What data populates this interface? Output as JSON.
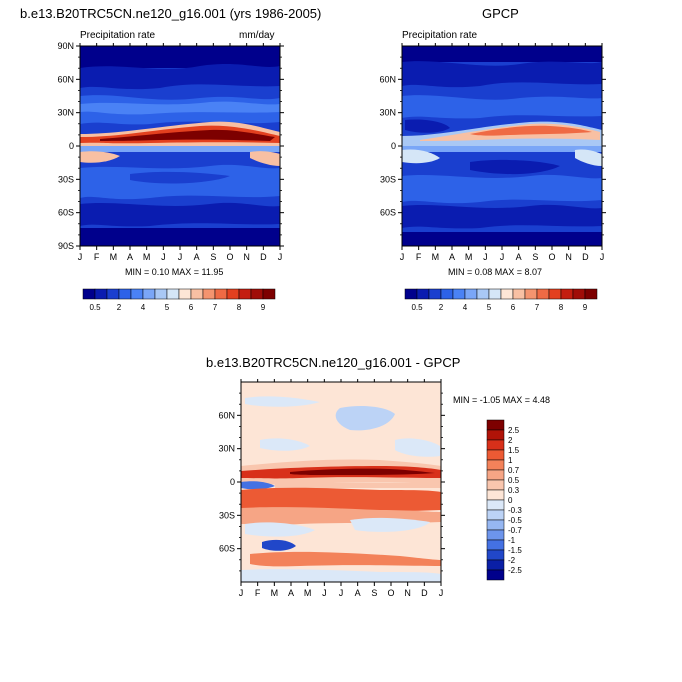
{
  "panels": [
    {
      "title": "b.e13.B20TRC5CN.ne120_g16.001 (yrs 1986-2005)",
      "left_label": "Precipitation rate",
      "right_label": "mm/day",
      "y_ticks": [
        "90N",
        "60N",
        "30N",
        "0",
        "30S",
        "60S",
        "90S"
      ],
      "x_ticks": [
        "J",
        "F",
        "M",
        "A",
        "M",
        "J",
        "J",
        "A",
        "S",
        "O",
        "N",
        "D",
        "J"
      ],
      "stats": "MIN =  0.10 MAX = 11.95",
      "colorbar_labels": [
        "0.5",
        "2",
        "4",
        "5",
        "6",
        "7",
        "8",
        "9"
      ]
    },
    {
      "title": "GPCP",
      "left_label": "Precipitation rate",
      "right_label": "",
      "y_ticks": [
        "60N",
        "30N",
        "0",
        "30S",
        "60S"
      ],
      "x_ticks": [
        "J",
        "F",
        "M",
        "A",
        "M",
        "J",
        "J",
        "A",
        "S",
        "O",
        "N",
        "D",
        "J"
      ],
      "stats": "MIN =  0.08 MAX =  8.07",
      "colorbar_labels": [
        "0.5",
        "2",
        "4",
        "5",
        "6",
        "7",
        "8",
        "9"
      ]
    },
    {
      "title": "b.e13.B20TRC5CN.ne120_g16.001 - GPCP",
      "y_ticks": [
        "60N",
        "30N",
        "0",
        "30S",
        "60S"
      ],
      "x_ticks": [
        "J",
        "F",
        "M",
        "A",
        "M",
        "J",
        "J",
        "A",
        "S",
        "O",
        "N",
        "D",
        "J"
      ],
      "stats": "MIN =  -1.05 MAX =   4.48",
      "colorbar_labels": [
        "2.5",
        "2",
        "1.5",
        "1",
        "0.7",
        "0.5",
        "0.3",
        "0",
        "-0.3",
        "-0.5",
        "-0.7",
        "-1",
        "-1.5",
        "-2",
        "-2.5"
      ]
    }
  ],
  "colors": {
    "precip_scale": [
      "#00008c",
      "#0a1cb0",
      "#1a3fcf",
      "#2d62e8",
      "#4a82f5",
      "#7aa6f7",
      "#a9c8f5",
      "#d5e6f7",
      "#fde6d6",
      "#f8c0a3",
      "#f4946f",
      "#ef6a44",
      "#e3401f",
      "#c41e10",
      "#a00d08",
      "#7d0000"
    ],
    "diff_scale": [
      "#7d0000",
      "#b01308",
      "#d8301a",
      "#ec5a34",
      "#f3825a",
      "#f6a585",
      "#f9c6ae",
      "#fde5d6",
      "#dbe8f8",
      "#bcd3f6",
      "#96b7f2",
      "#6d95ec",
      "#4471e3",
      "#2147c9",
      "#0a1fa6",
      "#00008c"
    ]
  },
  "chart_data": [
    {
      "type": "heatmap",
      "title": "b.e13.B20TRC5CN.ne120_g16.001 (yrs 1986-2005)",
      "xlabel": "",
      "ylabel": "",
      "x": [
        "J",
        "F",
        "M",
        "A",
        "M",
        "J",
        "J",
        "A",
        "S",
        "O",
        "N",
        "D",
        "J"
      ],
      "y": [
        90,
        60,
        30,
        0,
        -30,
        -60,
        -90
      ],
      "ylim": [
        -90,
        90
      ],
      "units": "mm/day",
      "min": 0.1,
      "max": 11.95,
      "levels": [
        0.5,
        1,
        1.5,
        2,
        3,
        4,
        4.5,
        5,
        5.5,
        6,
        6.5,
        7,
        7.5,
        8,
        8.5,
        9
      ],
      "itcz_peak": {
        "lat": 7,
        "months": [
          "J",
          "A",
          "S"
        ],
        "value": 11.95
      }
    },
    {
      "type": "heatmap",
      "title": "GPCP",
      "xlabel": "",
      "ylabel": "",
      "x": [
        "J",
        "F",
        "M",
        "A",
        "M",
        "J",
        "J",
        "A",
        "S",
        "O",
        "N",
        "D",
        "J"
      ],
      "y": [
        60,
        30,
        0,
        -30,
        -60
      ],
      "ylim": [
        -90,
        90
      ],
      "min": 0.08,
      "max": 8.07,
      "levels": [
        0.5,
        1,
        1.5,
        2,
        3,
        4,
        4.5,
        5,
        5.5,
        6,
        6.5,
        7,
        7.5,
        8,
        8.5,
        9
      ],
      "itcz_peak": {
        "lat": 7,
        "months": [
          "A",
          "S"
        ],
        "value": 8.07
      }
    },
    {
      "type": "heatmap",
      "title": "b.e13.B20TRC5CN.ne120_g16.001 - GPCP",
      "xlabel": "",
      "ylabel": "",
      "x": [
        "J",
        "F",
        "M",
        "A",
        "M",
        "J",
        "J",
        "A",
        "S",
        "O",
        "N",
        "D",
        "J"
      ],
      "y": [
        60,
        30,
        0,
        -30,
        -60
      ],
      "ylim": [
        -90,
        90
      ],
      "min": -1.05,
      "max": 4.48,
      "levels": [
        -2.5,
        -2,
        -1.5,
        -1,
        -0.7,
        -0.5,
        -0.3,
        0,
        0.3,
        0.5,
        0.7,
        1,
        1.5,
        2,
        2.5
      ]
    }
  ]
}
